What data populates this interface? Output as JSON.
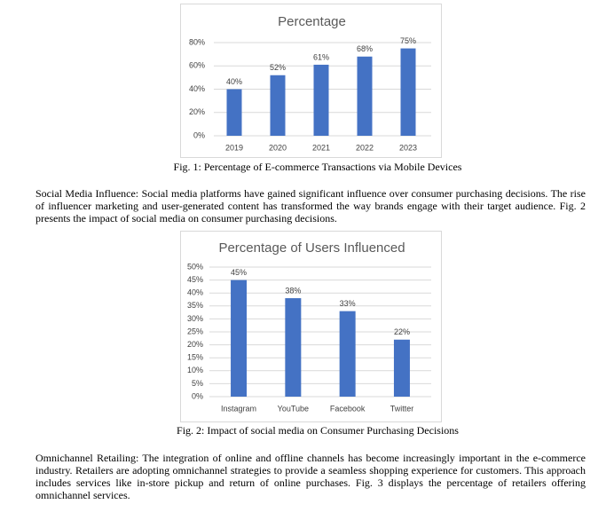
{
  "chart_data": [
    {
      "type": "bar",
      "title": "Percentage",
      "categories": [
        "2019",
        "2020",
        "2021",
        "2022",
        "2023"
      ],
      "values": [
        40,
        52,
        61,
        68,
        75
      ],
      "value_labels": [
        "40%",
        "52%",
        "61%",
        "68%",
        "75%"
      ],
      "color": "#4472c4",
      "ylim": [
        0,
        80
      ],
      "yticks": [
        {
          "value": 0,
          "label": "0%"
        },
        {
          "value": 20,
          "label": "20%"
        },
        {
          "value": 40,
          "label": "40%"
        },
        {
          "value": 60,
          "label": "60%"
        },
        {
          "value": 80,
          "label": "80%"
        }
      ],
      "grid": true
    },
    {
      "type": "bar",
      "title": "Percentage of Users Influenced",
      "categories": [
        "Instagram",
        "YouTube",
        "Facebook",
        "Twitter"
      ],
      "values": [
        45,
        38,
        33,
        22
      ],
      "value_labels": [
        "45%",
        "38%",
        "33%",
        "22%"
      ],
      "color": "#4472c4",
      "ylim": [
        0,
        50
      ],
      "yticks": [
        {
          "value": 0,
          "label": "0%"
        },
        {
          "value": 5,
          "label": "5%"
        },
        {
          "value": 10,
          "label": "10%"
        },
        {
          "value": 15,
          "label": "15%"
        },
        {
          "value": 20,
          "label": "20%"
        },
        {
          "value": 25,
          "label": "25%"
        },
        {
          "value": 30,
          "label": "30%"
        },
        {
          "value": 35,
          "label": "35%"
        },
        {
          "value": 40,
          "label": "40%"
        },
        {
          "value": 45,
          "label": "45%"
        },
        {
          "value": 50,
          "label": "50%"
        }
      ],
      "grid": true
    }
  ],
  "figure_captions": [
    "Fig. 1: Percentage of E-commerce Transactions via Mobile Devices",
    "Fig. 2: Impact of social media on Consumer Purchasing Decisions"
  ],
  "paragraphs": [
    "Social Media Influence: Social media platforms have gained significant influence over consumer purchasing decisions. The rise of influencer marketing and user-generated content has transformed the way brands engage with their target audience. Fig. 2 presents the impact of social media on consumer purchasing decisions.",
    "Omnichannel Retailing: The integration of online and offline channels has become increasingly important in the e-commerce industry. Retailers are adopting omnichannel strategies to provide a seamless shopping experience for customers. This approach includes services like in-store pickup and return of online purchases. Fig. 3 displays the percentage of retailers offering omnichannel services."
  ]
}
